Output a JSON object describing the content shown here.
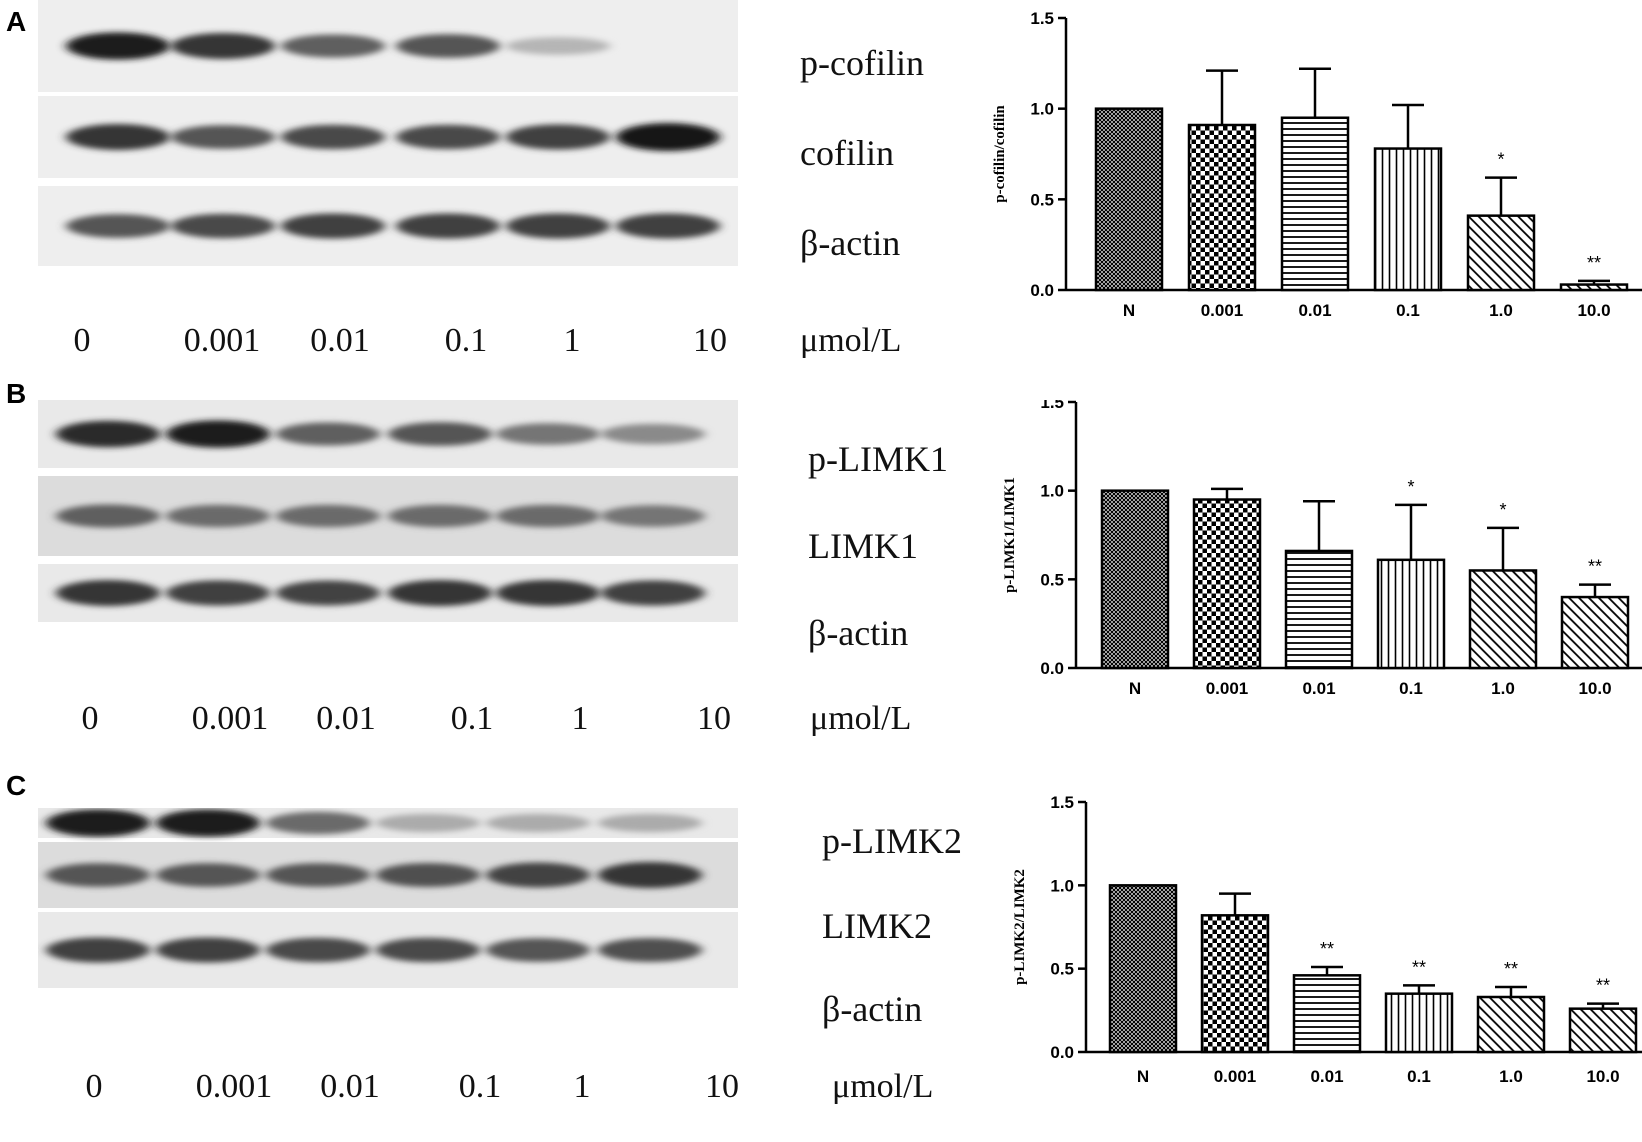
{
  "panels": [
    {
      "letter": "A",
      "blot": {
        "proteins": [
          "p-cofilin",
          "cofilin",
          "β-actin"
        ],
        "concentrations": [
          "0",
          "0.001",
          "0.01",
          "0.1",
          "1",
          "10"
        ],
        "unit": "μmol/L",
        "band_intensity": [
          [
            0.95,
            0.85,
            0.65,
            0.7,
            0.25,
            0.0
          ],
          [
            0.85,
            0.7,
            0.75,
            0.75,
            0.8,
            1.0
          ],
          [
            0.7,
            0.75,
            0.8,
            0.8,
            0.8,
            0.8
          ]
        ]
      }
    },
    {
      "letter": "B",
      "blot": {
        "proteins": [
          "p-LIMK1",
          "LIMK1",
          "β-actin"
        ],
        "concentrations": [
          "0",
          "0.001",
          "0.01",
          "0.1",
          "1",
          "10"
        ],
        "unit": "μmol/L",
        "band_intensity": [
          [
            0.9,
            0.95,
            0.65,
            0.7,
            0.55,
            0.45
          ],
          [
            0.65,
            0.6,
            0.6,
            0.6,
            0.6,
            0.55
          ],
          [
            0.85,
            0.8,
            0.78,
            0.85,
            0.85,
            0.8
          ]
        ]
      }
    },
    {
      "letter": "C",
      "blot": {
        "proteins": [
          "p-LIMK2",
          "LIMK2",
          "β-actin"
        ],
        "concentrations": [
          "0",
          "0.001",
          "0.01",
          "0.1",
          "1",
          "10"
        ],
        "unit": "μmol/L",
        "band_intensity": [
          [
            0.95,
            0.95,
            0.6,
            0.3,
            0.3,
            0.3
          ],
          [
            0.7,
            0.7,
            0.7,
            0.72,
            0.78,
            0.85
          ],
          [
            0.8,
            0.8,
            0.75,
            0.75,
            0.7,
            0.72
          ]
        ]
      }
    }
  ],
  "colors": {
    "bar_stroke": "#000000",
    "bar_fill": "#ffffff",
    "text": "#111111"
  },
  "chart_data": [
    {
      "type": "bar",
      "categories": [
        "N",
        "0.001",
        "0.01",
        "0.1",
        "1.0",
        "10.0"
      ],
      "values": [
        1.0,
        0.91,
        0.95,
        0.78,
        0.41,
        0.03
      ],
      "errors": [
        0,
        0.3,
        0.27,
        0.24,
        0.21,
        0.02
      ],
      "significance": [
        "",
        "",
        "",
        "",
        "*",
        "**"
      ],
      "patterns": [
        "crosshatch",
        "checker",
        "horizontal",
        "vertical",
        "diag-right",
        "diag-right"
      ],
      "title": "",
      "xlabel": "",
      "ylabel": "p-cofilin/cofilin",
      "ylim": [
        0,
        1.5
      ],
      "yticks": [
        "0.0",
        "0.5",
        "1.0",
        "1.5"
      ],
      "grid": false,
      "legend": "none"
    },
    {
      "type": "bar",
      "categories": [
        "N",
        "0.001",
        "0.01",
        "0.1",
        "1.0",
        "10.0"
      ],
      "values": [
        1.0,
        0.95,
        0.66,
        0.61,
        0.55,
        0.4
      ],
      "errors": [
        0,
        0.06,
        0.28,
        0.31,
        0.24,
        0.07
      ],
      "significance": [
        "",
        "",
        "",
        "*",
        "*",
        "**"
      ],
      "patterns": [
        "crosshatch",
        "checker",
        "horizontal",
        "vertical",
        "diag-right",
        "diag-right"
      ],
      "title": "",
      "xlabel": "",
      "ylabel": "p-LIMK1/LIMK1",
      "ylim": [
        0,
        1.5
      ],
      "yticks": [
        "0.0",
        "0.5",
        "1.0",
        "1.5"
      ],
      "grid": false,
      "legend": "none"
    },
    {
      "type": "bar",
      "categories": [
        "N",
        "0.001",
        "0.01",
        "0.1",
        "1.0",
        "10.0"
      ],
      "values": [
        1.0,
        0.82,
        0.46,
        0.35,
        0.33,
        0.26
      ],
      "errors": [
        0,
        0.13,
        0.05,
        0.05,
        0.06,
        0.03
      ],
      "significance": [
        "",
        "",
        "**",
        "**",
        "**",
        "**"
      ],
      "patterns": [
        "crosshatch",
        "checker",
        "horizontal",
        "vertical",
        "diag-right",
        "diag-right"
      ],
      "title": "",
      "xlabel": "",
      "ylabel": "p-LIMK2/LIMK2",
      "ylim": [
        0,
        1.5
      ],
      "yticks": [
        "0.0",
        "0.5",
        "1.0",
        "1.5"
      ],
      "grid": false,
      "legend": "none"
    }
  ]
}
